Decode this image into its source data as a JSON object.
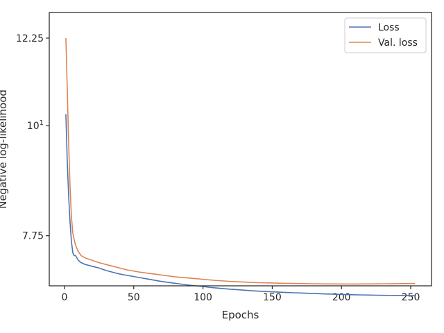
{
  "chart_data": {
    "type": "line",
    "title": "",
    "xlabel": "Epochs",
    "ylabel": "Negative log-likelihood",
    "xlim": [
      -11,
      265
    ],
    "ylim": [
      6.9,
      13.0
    ],
    "y_scale": "log",
    "x_ticks": [
      0,
      50,
      100,
      150,
      200,
      250
    ],
    "y_ticks": [
      {
        "value": 12.25,
        "label": "12.25"
      },
      {
        "value": 10,
        "label": "10",
        "sup": "1"
      },
      {
        "value": 7.75,
        "label": "7.75"
      }
    ],
    "grid": false,
    "legend_position": "upper right",
    "series": [
      {
        "name": "Loss",
        "color": "#4c72b0",
        "x": [
          1,
          2,
          3,
          4,
          5,
          6,
          7,
          8,
          10,
          12,
          15,
          20,
          25,
          30,
          35,
          40,
          45,
          50,
          55,
          60,
          65,
          70,
          75,
          80,
          85,
          90,
          95,
          100,
          105,
          110,
          115,
          120,
          125,
          130,
          135,
          140,
          145,
          150,
          155,
          160,
          165,
          170,
          175,
          180,
          185,
          190,
          195,
          200,
          205,
          210,
          215,
          220,
          225,
          230,
          235,
          240,
          245,
          250,
          253
        ],
        "y": [
          10.27,
          9.2,
          8.5,
          8.0,
          7.65,
          7.45,
          7.4,
          7.4,
          7.32,
          7.28,
          7.25,
          7.22,
          7.19,
          7.15,
          7.12,
          7.09,
          7.07,
          7.05,
          7.03,
          7.01,
          6.99,
          6.97,
          6.955,
          6.94,
          6.925,
          6.91,
          6.9,
          6.89,
          6.875,
          6.865,
          6.855,
          6.845,
          6.838,
          6.83,
          6.822,
          6.815,
          6.81,
          6.805,
          6.8,
          6.795,
          6.79,
          6.786,
          6.782,
          6.778,
          6.774,
          6.77,
          6.767,
          6.764,
          6.761,
          6.758,
          6.756,
          6.754,
          6.752,
          6.75,
          6.749,
          6.748,
          6.747,
          6.746,
          6.746
        ]
      },
      {
        "name": "Val. loss",
        "color": "#dd8452",
        "x": [
          1,
          2,
          3,
          4,
          5,
          6,
          7,
          8,
          10,
          12,
          15,
          20,
          25,
          30,
          35,
          40,
          45,
          50,
          55,
          60,
          65,
          70,
          75,
          80,
          85,
          90,
          95,
          100,
          105,
          110,
          115,
          120,
          125,
          130,
          135,
          140,
          145,
          150,
          155,
          160,
          165,
          170,
          175,
          180,
          185,
          190,
          195,
          200,
          205,
          210,
          215,
          220,
          225,
          230,
          235,
          240,
          245,
          250,
          253
        ],
        "y": [
          12.25,
          10.9,
          9.6,
          8.7,
          8.1,
          7.8,
          7.68,
          7.58,
          7.47,
          7.4,
          7.36,
          7.32,
          7.28,
          7.25,
          7.22,
          7.19,
          7.16,
          7.14,
          7.12,
          7.105,
          7.09,
          7.075,
          7.06,
          7.045,
          7.035,
          7.025,
          7.015,
          7.005,
          6.995,
          6.985,
          6.978,
          6.97,
          6.965,
          6.96,
          6.955,
          6.95,
          6.948,
          6.945,
          6.942,
          6.94,
          6.938,
          6.936,
          6.934,
          6.932,
          6.931,
          6.93,
          6.93,
          6.929,
          6.929,
          6.929,
          6.93,
          6.93,
          6.931,
          6.932,
          6.933,
          6.934,
          6.935,
          6.936,
          6.937
        ]
      }
    ]
  }
}
